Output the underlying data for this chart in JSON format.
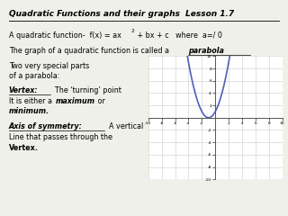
{
  "title_left": "Quadratic Functions and their graphs",
  "title_right": "        Lesson 1.7",
  "line1a": "A quadratic function-  f(x) = ax",
  "line1b": " + bx + c   where  a=/ 0",
  "line2a": "The graph of a quadratic function is called a   ",
  "line2b": "parabola",
  "line3a": "Two very special parts",
  "line3b": "of a parabola:",
  "line4a": "Vertex:",
  "line4b": "  The ‘turning’ point",
  "line5a": "It is either a ",
  "line5b": "maximum",
  "line5c": " or",
  "line6": "minimum.",
  "line7a": "Axis of symmetry:",
  "line7b": "  A vertical",
  "line8": "Line that passes through the",
  "line9": "Vertex.",
  "graph_xlim": [
    -10,
    10
  ],
  "graph_ylim": [
    -10,
    10
  ],
  "background_color": "#f0f0eb",
  "text_color": "#000000",
  "curve_color": "#5060b8",
  "grid_color": "#cccccc"
}
